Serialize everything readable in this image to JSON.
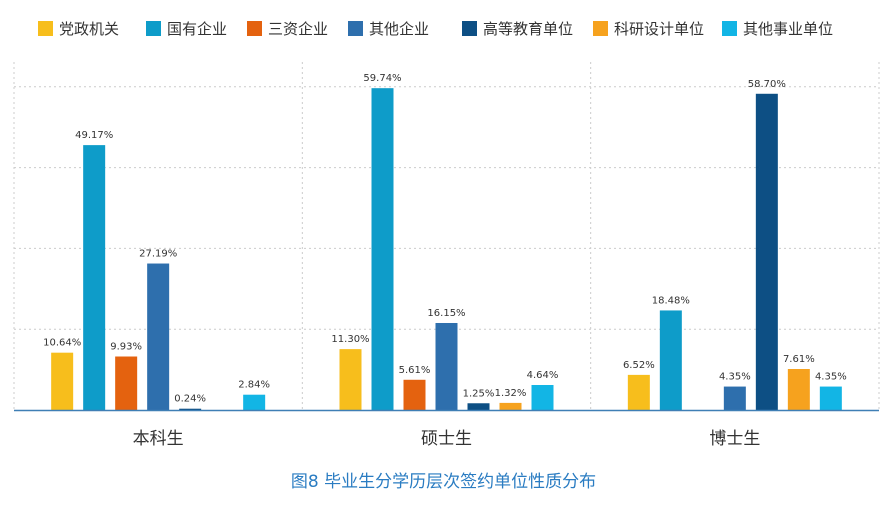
{
  "chart_data": {
    "type": "bar",
    "title": "图8 毕业生分学历层次签约单位性质分布",
    "xlabel": "",
    "ylabel": "",
    "ylim": [
      0,
      62
    ],
    "grid": true,
    "legend_position": "top",
    "categories": [
      "本科生",
      "硕士生",
      "博士生"
    ],
    "series": [
      {
        "name": "党政机关",
        "color": "#F7BE1C",
        "values": [
          10.64,
          11.3,
          6.52
        ],
        "labels": [
          "10.64%",
          "11.30%",
          "6.52%"
        ]
      },
      {
        "name": "国有企业",
        "color": "#0E9CC9",
        "values": [
          49.17,
          59.74,
          18.48
        ],
        "labels": [
          "49.17%",
          "59.74%",
          "18.48%"
        ]
      },
      {
        "name": "三资企业",
        "color": "#E4620F",
        "values": [
          9.93,
          5.61,
          0
        ],
        "labels": [
          "9.93%",
          "5.61%",
          ""
        ]
      },
      {
        "name": "其他企业",
        "color": "#2E6FAD",
        "values": [
          27.19,
          16.15,
          4.35
        ],
        "labels": [
          "27.19%",
          "16.15%",
          "4.35%"
        ]
      },
      {
        "name": "高等教育单位",
        "color": "#0D4F84",
        "values": [
          0.24,
          1.25,
          58.7
        ],
        "labels": [
          "0.24%",
          "1.25%",
          "58.70%"
        ]
      },
      {
        "name": "科研设计单位",
        "color": "#F6A21E",
        "values": [
          0,
          1.32,
          7.61
        ],
        "labels": [
          "",
          "1.32%",
          "7.61%"
        ]
      },
      {
        "name": "其他事业单位",
        "color": "#12B5E5",
        "values": [
          2.84,
          4.64,
          4.35
        ],
        "labels": [
          "2.84%",
          "4.64%",
          "4.35%"
        ]
      }
    ],
    "colors": {
      "axis": "#3F7FB5",
      "grid": "#CCCCCC",
      "title": "#2A7CC2",
      "text": "#333333"
    }
  }
}
